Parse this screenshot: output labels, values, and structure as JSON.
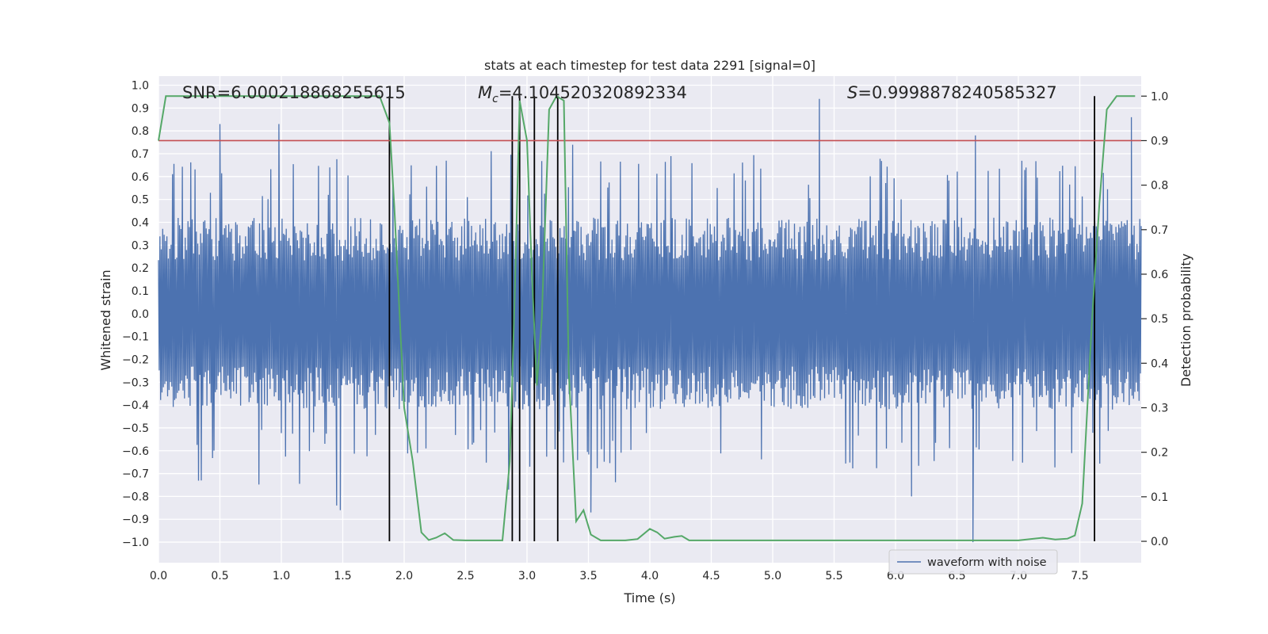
{
  "chart_data": {
    "type": "line",
    "title": "stats at each timestep for test data 2291 [signal=0]",
    "xlabel": "Time (s)",
    "ylabel": "Whitened strain",
    "y2label": "Detection probability",
    "xlim": [
      0.0,
      8.0
    ],
    "ylim": [
      -1.09,
      1.04
    ],
    "y2lim": [
      -0.048,
      1.045
    ],
    "xticks": [
      "0.0",
      "0.5",
      "1.0",
      "1.5",
      "2.0",
      "2.5",
      "3.0",
      "3.5",
      "4.0",
      "4.5",
      "5.0",
      "5.5",
      "6.0",
      "6.5",
      "7.0",
      "7.5"
    ],
    "yticks": [
      "1.0",
      "0.9",
      "0.8",
      "0.7",
      "0.6",
      "0.5",
      "0.4",
      "0.3",
      "0.2",
      "0.1",
      "0.0",
      "-0.1",
      "-0.2",
      "-0.3",
      "-0.4",
      "-0.5",
      "-0.6",
      "-0.7",
      "-0.8",
      "-0.9",
      "-1.0"
    ],
    "y2ticks": [
      "1.0",
      "0.9",
      "0.8",
      "0.7",
      "0.6",
      "0.5",
      "0.4",
      "0.3",
      "0.2",
      "0.1",
      "0.0"
    ],
    "annotations": {
      "snr": "SNR=6.000218868255615",
      "mc_symbol": "M",
      "mc_sub": "c",
      "mc_value": "=4.104520320892334",
      "s_symbol": "S",
      "s_value": "=0.9998878240585327"
    },
    "legend": {
      "label": "waveform with noise",
      "position": "lower-right"
    },
    "threshold": {
      "value": 0.9,
      "axis": "right",
      "color": "#c44e52"
    },
    "vertical_lines": [
      1.88,
      2.88,
      2.94,
      3.06,
      3.25,
      7.62
    ],
    "waveform": {
      "name": "waveform with noise",
      "color": "#4c72b0",
      "duration": 8.0,
      "envelope": 0.42,
      "notable_peaks": [
        {
          "t": 0.5,
          "v": 0.83
        },
        {
          "t": 0.98,
          "v": 0.83
        },
        {
          "t": 1.45,
          "v": -0.84
        },
        {
          "t": 1.48,
          "v": -0.86
        },
        {
          "t": 2.85,
          "v": -0.77
        },
        {
          "t": 3.52,
          "v": -0.87
        },
        {
          "t": 5.38,
          "v": 0.94
        },
        {
          "t": 6.63,
          "v": -1.0
        },
        {
          "t": 6.65,
          "v": 0.78
        },
        {
          "t": 7.92,
          "v": 0.86
        },
        {
          "t": 6.13,
          "v": -0.8
        }
      ]
    },
    "probability": {
      "name": "detection probability",
      "color": "#55a868",
      "t": [
        0.0,
        0.06,
        0.2,
        1.5,
        1.8,
        1.88,
        1.92,
        2.0,
        2.07,
        2.14,
        2.2,
        2.26,
        2.33,
        2.4,
        2.5,
        2.6,
        2.7,
        2.8,
        2.86,
        2.9,
        2.94,
        3.0,
        3.04,
        3.08,
        3.12,
        3.18,
        3.24,
        3.3,
        3.34,
        3.4,
        3.46,
        3.52,
        3.6,
        3.8,
        3.9,
        4.0,
        4.06,
        4.12,
        4.2,
        4.26,
        4.32,
        4.5,
        5.0,
        5.5,
        6.0,
        6.4,
        6.6,
        7.0,
        7.2,
        7.3,
        7.4,
        7.46,
        7.52,
        7.6,
        7.66,
        7.72,
        7.8,
        7.86,
        7.95
      ],
      "values": [
        0.9,
        1.0,
        1.0,
        1.0,
        1.0,
        0.94,
        0.75,
        0.3,
        0.18,
        0.02,
        0.003,
        0.008,
        0.018,
        0.003,
        0.002,
        0.002,
        0.002,
        0.002,
        0.18,
        0.55,
        0.99,
        0.9,
        0.6,
        0.35,
        0.5,
        0.97,
        1.0,
        0.99,
        0.38,
        0.045,
        0.07,
        0.015,
        0.002,
        0.002,
        0.005,
        0.028,
        0.02,
        0.006,
        0.01,
        0.012,
        0.002,
        0.002,
        0.002,
        0.002,
        0.002,
        0.002,
        0.002,
        0.002,
        0.008,
        0.004,
        0.006,
        0.013,
        0.085,
        0.5,
        0.76,
        0.97,
        1.0,
        1.0,
        1.0
      ]
    }
  }
}
